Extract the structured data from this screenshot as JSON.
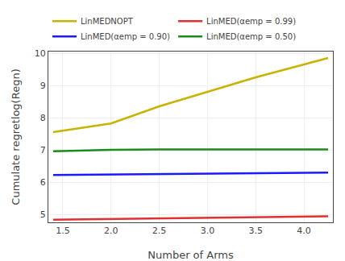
{
  "chart_data": {
    "type": "line",
    "title": "",
    "xlabel": "Number of Arms",
    "ylabel": "Cumulate regretlog(Regn)",
    "xlim": [
      1.35,
      4.3
    ],
    "ylim": [
      4.75,
      10.05
    ],
    "xticks": [
      1.5,
      {
        "value": 2.0,
        "label": "2.0"
      },
      2.5,
      {
        "value": 3.0,
        "label": "3.0"
      },
      3.5,
      {
        "value": 4.0,
        "label": "4.0"
      }
    ],
    "yticks": [
      5,
      6,
      7,
      8,
      9,
      10
    ],
    "grid": true,
    "legend": "upper left",
    "series": [
      {
        "name": "LinMEDNOPT",
        "color": "#c8b400",
        "x": [
          1.4,
          2.0,
          2.5,
          3.0,
          3.5,
          4.25
        ],
        "values": [
          7.55,
          7.82,
          8.35,
          8.8,
          9.25,
          9.85
        ]
      },
      {
        "name": "LinMED(αemp = 0.99)",
        "color": "#e03030",
        "x": [
          1.4,
          2.0,
          2.5,
          3.0,
          3.5,
          4.25
        ],
        "values": [
          4.83,
          4.855,
          4.87,
          4.885,
          4.9,
          4.935
        ]
      },
      {
        "name": "LinMED(αemp = 0.90)",
        "color": "#1a1aff",
        "x": [
          1.4,
          2.0,
          2.5,
          3.0,
          3.5,
          4.25
        ],
        "values": [
          6.22,
          6.235,
          6.245,
          6.265,
          6.285,
          6.295
        ]
      },
      {
        "name": "LinMED(αemp = 0.50)",
        "color": "#1a8c1a",
        "x": [
          1.4,
          2.0,
          2.5,
          3.0,
          3.5,
          4.25
        ],
        "values": [
          6.955,
          7.0,
          7.01,
          7.01,
          7.01,
          7.01
        ]
      }
    ]
  }
}
